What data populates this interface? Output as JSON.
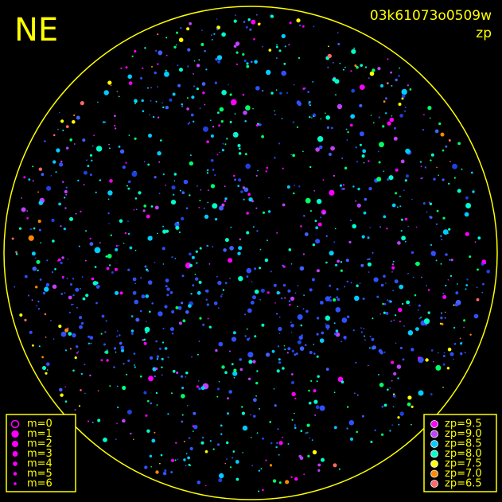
{
  "header": {
    "direction": "NE",
    "image_id": "03k61073o0509w",
    "metric": "zp"
  },
  "magnitude_legend": {
    "items": [
      "m=0",
      "m=1",
      "m=2",
      "m=3",
      "m=4",
      "m=5",
      "m=6"
    ]
  },
  "zp_legend": {
    "items": [
      {
        "label": "zp=9.5",
        "color": "#ff00ff"
      },
      {
        "label": "zp=9.0",
        "color": "#c040ff"
      },
      {
        "label": "zp=8.5",
        "color": "#00ccff"
      },
      {
        "label": "zp=8.0",
        "color": "#00ffcc"
      },
      {
        "label": "zp=7.5",
        "color": "#ffff00"
      },
      {
        "label": "zp=7.0",
        "color": "#ff8800"
      },
      {
        "label": "zp=6.5",
        "color": "#ff6666"
      }
    ]
  }
}
